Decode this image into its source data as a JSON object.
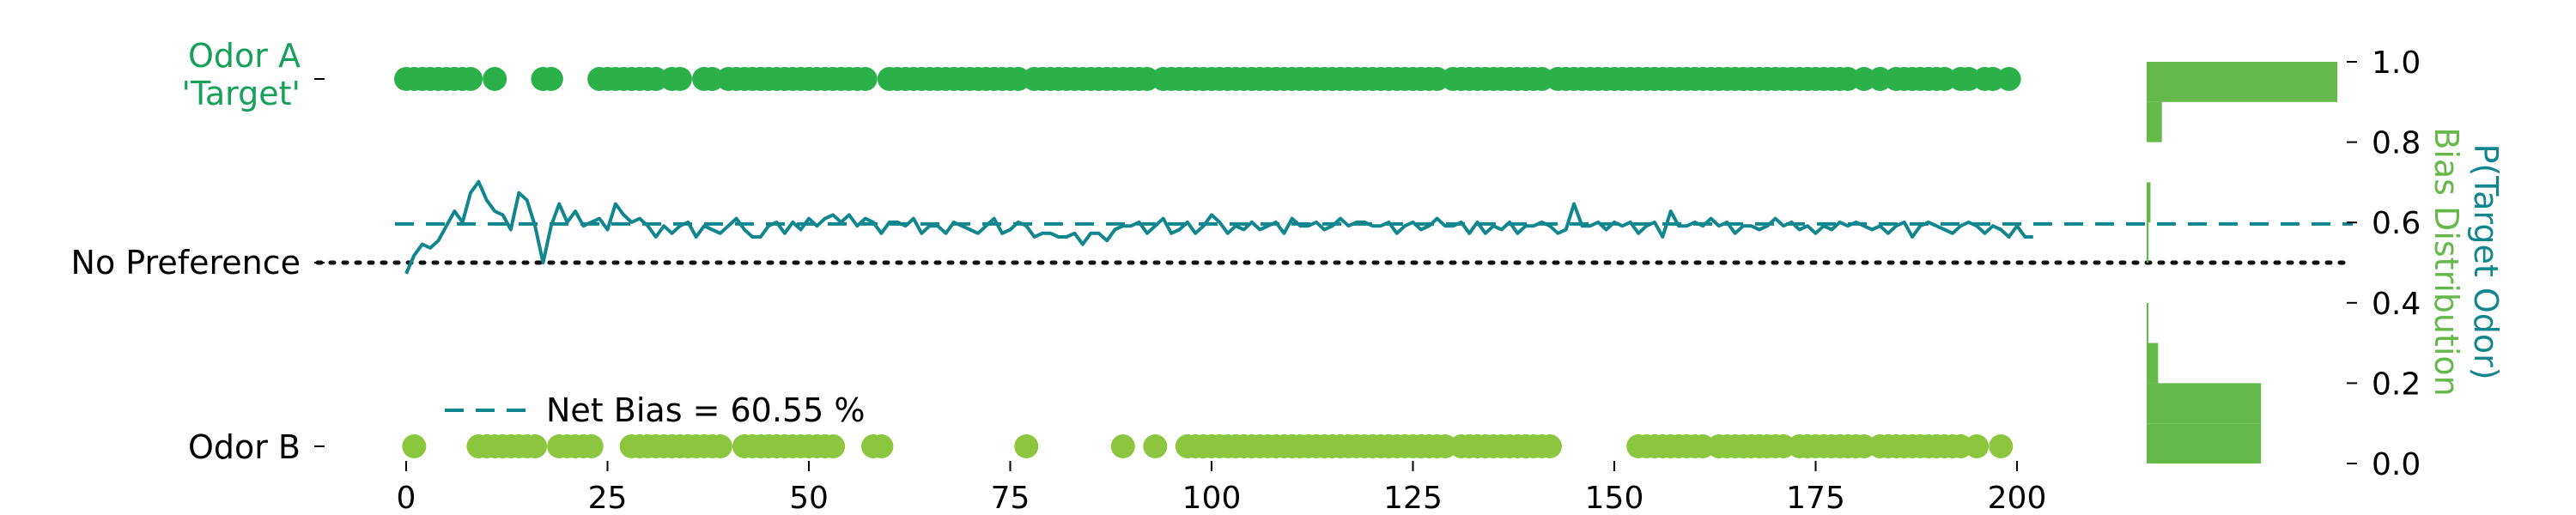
{
  "colors": {
    "odor_a": "#2bb04a",
    "odor_b": "#8cc63f",
    "bias_line": "#12868f",
    "hist": "#65b84a",
    "no_pref": "#111111",
    "axis_text": "#000000"
  },
  "chart_data": [
    {
      "type": "scatter",
      "xlim": [
        -2,
        202
      ],
      "x_ticks": [
        "0",
        "25",
        "50",
        "75",
        "100",
        "125",
        "150",
        "175",
        "200"
      ],
      "x_tick_values": [
        0,
        25,
        50,
        75,
        100,
        125,
        150,
        175,
        200
      ],
      "ylim": [
        0,
        1
      ],
      "y_category_labels": {
        "odor_a_line1": "Odor A",
        "odor_a_line2": "'Target'",
        "no_preference": "No Preference",
        "odor_b": "Odor B"
      },
      "no_preference_value": 0.5,
      "odor_a_trials": [
        0,
        1,
        2,
        3,
        4,
        5,
        6,
        7,
        8,
        11,
        17,
        18,
        24,
        25,
        26,
        27,
        28,
        29,
        30,
        31,
        33,
        34,
        37,
        38,
        40,
        41,
        42,
        43,
        44,
        45,
        46,
        47,
        48,
        49,
        50,
        51,
        52,
        53,
        54,
        55,
        56,
        57,
        60,
        61,
        62,
        63,
        64,
        65,
        66,
        67,
        68,
        69,
        70,
        71,
        72,
        73,
        74,
        75,
        76,
        78,
        79,
        80,
        81,
        82,
        83,
        84,
        85,
        86,
        87,
        88,
        89,
        90,
        91,
        92,
        94,
        95,
        96,
        97,
        98,
        99,
        100,
        101,
        102,
        103,
        104,
        105,
        106,
        107,
        108,
        109,
        110,
        111,
        112,
        113,
        114,
        115,
        116,
        117,
        118,
        119,
        120,
        121,
        122,
        123,
        124,
        125,
        126,
        127,
        128,
        130,
        131,
        132,
        133,
        134,
        135,
        136,
        137,
        138,
        139,
        140,
        141,
        143,
        144,
        145,
        146,
        147,
        148,
        149,
        150,
        151,
        152,
        153,
        154,
        155,
        156,
        157,
        158,
        159,
        160,
        161,
        162,
        163,
        164,
        165,
        166,
        167,
        168,
        169,
        170,
        171,
        172,
        173,
        174,
        175,
        176,
        177,
        178,
        179,
        181,
        183,
        185,
        186,
        187,
        188,
        189,
        190,
        191,
        193,
        194,
        196,
        197,
        199
      ],
      "odor_b_trials": [
        1,
        9,
        10,
        11,
        12,
        13,
        14,
        15,
        16,
        19,
        20,
        21,
        22,
        23,
        28,
        29,
        30,
        31,
        32,
        33,
        34,
        35,
        36,
        37,
        38,
        39,
        42,
        43,
        44,
        45,
        46,
        47,
        48,
        49,
        50,
        51,
        52,
        53,
        58,
        59,
        77,
        89,
        93,
        97,
        98,
        99,
        100,
        101,
        102,
        103,
        104,
        105,
        106,
        107,
        108,
        109,
        110,
        111,
        112,
        113,
        114,
        115,
        116,
        117,
        118,
        119,
        120,
        121,
        122,
        123,
        124,
        125,
        126,
        127,
        128,
        129,
        131,
        132,
        133,
        134,
        135,
        136,
        137,
        138,
        139,
        140,
        141,
        142,
        153,
        154,
        155,
        156,
        157,
        158,
        159,
        160,
        161,
        163,
        164,
        165,
        166,
        167,
        168,
        169,
        170,
        171,
        173,
        174,
        175,
        176,
        177,
        178,
        179,
        180,
        181,
        183,
        184,
        185,
        186,
        187,
        188,
        189,
        190,
        191,
        192,
        193,
        195,
        198
      ]
    },
    {
      "type": "line",
      "series": [
        {
          "values": [
            0.47,
            0.52,
            0.55,
            0.54,
            0.56,
            0.6,
            0.64,
            0.61,
            0.69,
            0.72,
            0.67,
            0.64,
            0.63,
            0.59,
            0.69,
            0.67,
            0.6,
            0.5,
            0.6,
            0.66,
            0.61,
            0.64,
            0.6,
            0.61,
            0.62,
            0.59,
            0.66,
            0.63,
            0.61,
            0.62,
            0.6,
            0.57,
            0.6,
            0.58,
            0.6,
            0.61,
            0.57,
            0.6,
            0.59,
            0.58,
            0.6,
            0.62,
            0.59,
            0.57,
            0.57,
            0.6,
            0.61,
            0.58,
            0.61,
            0.59,
            0.62,
            0.6,
            0.62,
            0.63,
            0.61,
            0.63,
            0.6,
            0.62,
            0.61,
            0.58,
            0.61,
            0.61,
            0.6,
            0.62,
            0.58,
            0.6,
            0.6,
            0.58,
            0.61,
            0.6,
            0.59,
            0.58,
            0.6,
            0.62,
            0.58,
            0.59,
            0.61,
            0.6,
            0.57,
            0.58,
            0.58,
            0.57,
            0.57,
            0.58,
            0.55,
            0.58,
            0.58,
            0.56,
            0.59,
            0.6,
            0.6,
            0.61,
            0.58,
            0.6,
            0.62,
            0.58,
            0.59,
            0.61,
            0.58,
            0.6,
            0.63,
            0.61,
            0.58,
            0.6,
            0.59,
            0.61,
            0.59,
            0.6,
            0.61,
            0.58,
            0.62,
            0.6,
            0.6,
            0.61,
            0.59,
            0.6,
            0.62,
            0.6,
            0.61,
            0.61,
            0.6,
            0.6,
            0.61,
            0.58,
            0.6,
            0.61,
            0.59,
            0.6,
            0.62,
            0.6,
            0.6,
            0.61,
            0.58,
            0.61,
            0.58,
            0.6,
            0.59,
            0.61,
            0.58,
            0.6,
            0.6,
            0.61,
            0.6,
            0.58,
            0.59,
            0.66,
            0.6,
            0.6,
            0.61,
            0.59,
            0.61,
            0.6,
            0.61,
            0.58,
            0.6,
            0.61,
            0.57,
            0.64,
            0.6,
            0.6,
            0.61,
            0.6,
            0.62,
            0.6,
            0.61,
            0.58,
            0.6,
            0.6,
            0.59,
            0.6,
            0.62,
            0.6,
            0.61,
            0.59,
            0.6,
            0.58,
            0.6,
            0.59,
            0.61,
            0.6,
            0.61,
            0.6,
            0.59,
            0.6,
            0.58,
            0.6,
            0.61,
            0.57,
            0.6,
            0.61,
            0.6,
            0.59,
            0.58,
            0.6,
            0.61,
            0.6,
            0.58,
            0.6,
            0.59,
            0.57,
            0.6,
            0.57,
            0.57
          ]
        }
      ],
      "net_bias": 0.6055,
      "legend": {
        "label": "Net Bias = 60.55 %",
        "placement": "lower-left"
      }
    },
    {
      "type": "bar",
      "orientation": "horizontal",
      "ylim": [
        0,
        1
      ],
      "y_ticks": [
        "0.0",
        "0.2",
        "0.4",
        "0.6",
        "0.8",
        "1.0"
      ],
      "y_tick_values": [
        0,
        0.2,
        0.4,
        0.6,
        0.8,
        1.0
      ],
      "ylabel_line1": "P(Target Odor)",
      "ylabel_line2": "Bias Distribution",
      "bins": [
        {
          "range": [
            0.9,
            1.0
          ],
          "count": 1.0
        },
        {
          "range": [
            0.8,
            0.9
          ],
          "count": 0.08
        },
        {
          "range": [
            0.6,
            0.7
          ],
          "count": 0.02
        },
        {
          "range": [
            0.5,
            0.6
          ],
          "count": 0.01
        },
        {
          "range": [
            0.3,
            0.4
          ],
          "count": 0.005
        },
        {
          "range": [
            0.2,
            0.3
          ],
          "count": 0.06
        },
        {
          "range": [
            0.1,
            0.2
          ],
          "count": 0.6
        },
        {
          "range": [
            0.0,
            0.1
          ],
          "count": 0.6
        }
      ]
    }
  ]
}
